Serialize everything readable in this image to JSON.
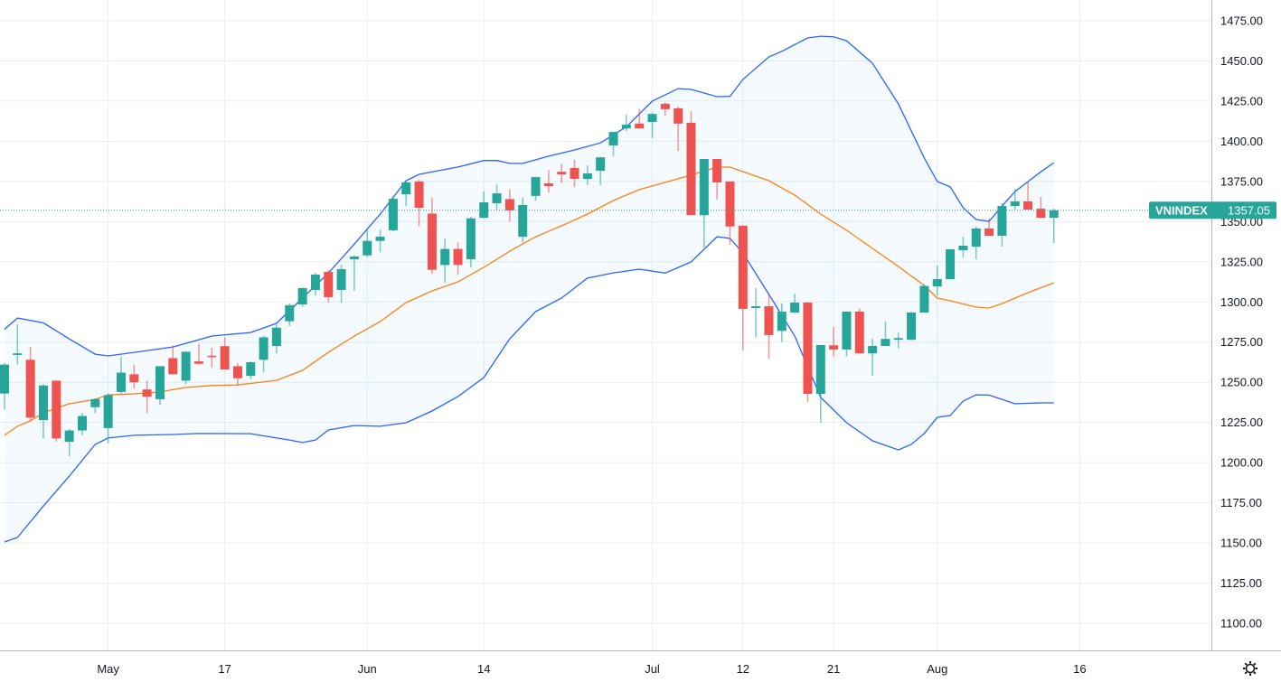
{
  "chart_data": {
    "type": "candlestick",
    "symbol": "VNINDEX",
    "last_price_label": "1357.05",
    "colors": {
      "up": "#26a69a",
      "down": "#ef5350",
      "bands": "#2962ff",
      "band_fill": "#2196f3",
      "basis": "#ff7f0e"
    },
    "ylim": [
      1075,
      1487
    ],
    "y_ticks": [
      "1100.00",
      "1125.00",
      "1150.00",
      "1175.00",
      "1200.00",
      "1225.00",
      "1250.00",
      "1275.00",
      "1300.00",
      "1325.00",
      "1350.00",
      "1375.00",
      "1400.00",
      "1425.00",
      "1450.00",
      "1475.00"
    ],
    "x_ticks": [
      {
        "label": "May",
        "date": "May 4"
      },
      {
        "label": "17",
        "date": "May 17"
      },
      {
        "label": "Jun",
        "date": "Jun 1"
      },
      {
        "label": "14",
        "date": "Jun 14"
      },
      {
        "label": "Jul",
        "date": "Jul 1"
      },
      {
        "label": "12",
        "date": "Jul 12"
      },
      {
        "label": "21",
        "date": "Jul 21"
      },
      {
        "label": "Aug",
        "date": "Aug 2"
      },
      {
        "label": "16",
        "date": "Aug 16"
      }
    ],
    "grid": true,
    "candles_columns": [
      "date",
      "open",
      "high",
      "low",
      "close"
    ],
    "candles": [
      [
        "Apr 19",
        1243,
        1262,
        1233,
        1261
      ],
      [
        "Apr 20",
        1267,
        1286,
        1261,
        1268
      ],
      [
        "Apr 22",
        1264,
        1272,
        1226,
        1228
      ],
      [
        "Apr 23",
        1226.5,
        1249,
        1215,
        1248
      ],
      [
        "Apr 26",
        1251,
        1251,
        1213,
        1215
      ],
      [
        "Apr 27",
        1213,
        1221,
        1204,
        1220
      ],
      [
        "Apr 28",
        1220,
        1231,
        1217,
        1229
      ],
      [
        "Apr 29",
        1234.5,
        1240,
        1231,
        1239.5
      ],
      [
        "May 4",
        1221.5,
        1243,
        1212,
        1242
      ],
      [
        "May 5",
        1244,
        1266,
        1243,
        1256
      ],
      [
        "May 6",
        1255,
        1261,
        1246,
        1250
      ],
      [
        "May 7",
        1245.5,
        1251,
        1231,
        1241
      ],
      [
        "May 10",
        1239.5,
        1260,
        1236,
        1260
      ],
      [
        "May 11",
        1265,
        1273,
        1255,
        1255
      ],
      [
        "May 12",
        1251,
        1269,
        1249,
        1269
      ],
      [
        "May 13",
        1263,
        1274,
        1261,
        1261.5
      ],
      [
        "May 14",
        1266.5,
        1271.5,
        1259,
        1266
      ],
      [
        "May 17",
        1272.5,
        1278,
        1258,
        1258
      ],
      [
        "May 18",
        1260,
        1262,
        1248,
        1252.5
      ],
      [
        "May 19",
        1254,
        1263,
        1252,
        1262.5
      ],
      [
        "May 20",
        1264,
        1279,
        1256,
        1278
      ],
      [
        "May 21",
        1272.6,
        1286,
        1268,
        1284
      ],
      [
        "May 24",
        1288,
        1299,
        1285,
        1298
      ],
      [
        "May 25",
        1298.5,
        1309,
        1297,
        1308.6
      ],
      [
        "May 26",
        1307.5,
        1318,
        1304,
        1317
      ],
      [
        "May 27",
        1318.7,
        1320,
        1299.6,
        1303
      ],
      [
        "May 28",
        1307.5,
        1323,
        1299.6,
        1320.4
      ],
      [
        "May 31",
        1326.6,
        1329,
        1307,
        1328.3
      ],
      [
        "Jun 1",
        1329,
        1346,
        1328,
        1338
      ],
      [
        "Jun 2",
        1338,
        1345,
        1331,
        1340.6
      ],
      [
        "Jun 3",
        1344.6,
        1366,
        1344,
        1364.2
      ],
      [
        "Jun 4",
        1367,
        1375,
        1359.7,
        1374.4
      ],
      [
        "Jun 7",
        1375,
        1376,
        1347,
        1358.6
      ],
      [
        "Jun 8",
        1355,
        1365,
        1317.6,
        1320
      ],
      [
        "Jun 9",
        1323,
        1339.5,
        1312,
        1333
      ],
      [
        "Jun 10",
        1333,
        1337,
        1317,
        1323
      ],
      [
        "Jun 11",
        1326.6,
        1353,
        1321.5,
        1352
      ],
      [
        "Jun 14",
        1352.4,
        1369,
        1352,
        1362
      ],
      [
        "Jun 15",
        1361.4,
        1373,
        1357,
        1367.6
      ],
      [
        "Jun 16",
        1364,
        1370,
        1350,
        1357
      ],
      [
        "Jun 17",
        1340.6,
        1365,
        1337,
        1360.3
      ],
      [
        "Jun 18",
        1366,
        1378,
        1363,
        1377.7
      ],
      [
        "Jun 21",
        1373.8,
        1382,
        1368,
        1372
      ],
      [
        "Jun 22",
        1381,
        1386,
        1374,
        1379.4
      ],
      [
        "Jun 23",
        1383.4,
        1388.4,
        1371.6,
        1376.6
      ],
      [
        "Jun 24",
        1376.6,
        1385,
        1372.7,
        1380
      ],
      [
        "Jun 25",
        1381.7,
        1390,
        1372.7,
        1390
      ],
      [
        "Jun 28",
        1397.4,
        1406,
        1390.7,
        1405.8
      ],
      [
        "Jun 29",
        1408,
        1416.5,
        1406.4,
        1410.3
      ],
      [
        "Jun 30",
        1411,
        1420,
        1408,
        1408
      ],
      [
        "Jul 1",
        1412,
        1418,
        1402,
        1417
      ],
      [
        "Jul 2",
        1423.3,
        1424.4,
        1416,
        1420
      ],
      [
        "Jul 5",
        1420.5,
        1421.6,
        1394,
        1411
      ],
      [
        "Jul 6",
        1411.5,
        1419,
        1354,
        1354
      ],
      [
        "Jul 7",
        1354,
        1389,
        1334,
        1389
      ],
      [
        "Jul 8",
        1389,
        1389,
        1363.7,
        1374.4
      ],
      [
        "Jul 9",
        1375,
        1375,
        1335.6,
        1347
      ],
      [
        "Jul 12",
        1347.4,
        1348,
        1270,
        1295.7
      ],
      [
        "Jul 13",
        1296.2,
        1308.6,
        1278,
        1297.3
      ],
      [
        "Jul 14",
        1297.3,
        1305,
        1264.7,
        1279.4
      ],
      [
        "Jul 15",
        1282,
        1299,
        1275,
        1294
      ],
      [
        "Jul 16",
        1293.4,
        1305,
        1293,
        1299.6
      ],
      [
        "Jul 19",
        1299.6,
        1300,
        1237.7,
        1242.8
      ],
      [
        "Jul 20",
        1242.8,
        1273.2,
        1224.8,
        1273.2
      ],
      [
        "Jul 21",
        1273,
        1284.4,
        1266,
        1270.4
      ],
      [
        "Jul 22",
        1270.4,
        1294,
        1266,
        1294
      ],
      [
        "Jul 23",
        1294,
        1296,
        1268,
        1268
      ],
      [
        "Jul 26",
        1268,
        1277,
        1254,
        1272.6
      ],
      [
        "Jul 27",
        1272.6,
        1288,
        1272.6,
        1277
      ],
      [
        "Jul 28",
        1276.5,
        1281,
        1271,
        1277.5
      ],
      [
        "Jul 29",
        1276.5,
        1294,
        1276,
        1293.4
      ],
      [
        "Jul 30",
        1293.4,
        1311,
        1293.4,
        1310
      ],
      [
        "Aug 2",
        1309.7,
        1322.6,
        1304,
        1314.2
      ],
      [
        "Aug 3",
        1314.2,
        1333,
        1314,
        1332.8
      ],
      [
        "Aug 4",
        1332.2,
        1340.6,
        1327.7,
        1335
      ],
      [
        "Aug 5",
        1334.4,
        1347,
        1326.6,
        1345.7
      ],
      [
        "Aug 6",
        1345.7,
        1352,
        1341,
        1341.2
      ],
      [
        "Aug 9",
        1341.2,
        1361.4,
        1334.4,
        1359.7
      ],
      [
        "Aug 10",
        1359.7,
        1370.4,
        1357.5,
        1362.6
      ],
      [
        "Aug 11",
        1362.6,
        1374.4,
        1357.5,
        1357.5
      ],
      [
        "Aug 12",
        1358,
        1365.4,
        1352,
        1352.4
      ],
      [
        "Aug 13",
        1352.4,
        1358,
        1336.7,
        1357.05
      ]
    ],
    "bollinger_upper": [
      [
        "Apr 19",
        1283
      ],
      [
        "Apr 20",
        1290
      ],
      [
        "Apr 23",
        1287
      ],
      [
        "Apr 27",
        1277
      ],
      [
        "Apr 29",
        1267.5
      ],
      [
        "May 4",
        1266.4
      ],
      [
        "May 6",
        1268.6
      ],
      [
        "May 11",
        1272
      ],
      [
        "May 13",
        1276.5
      ],
      [
        "May 14",
        1278.8
      ],
      [
        "May 19",
        1281
      ],
      [
        "May 21",
        1286.7
      ],
      [
        "May 25",
        1302.4
      ],
      [
        "May 27",
        1318
      ],
      [
        "May 31",
        1336
      ],
      [
        "Jun 2",
        1354.7
      ],
      [
        "Jun 4",
        1375.5
      ],
      [
        "Jun 7",
        1379.4
      ],
      [
        "Jun 10",
        1384
      ],
      [
        "Jun 14",
        1388
      ],
      [
        "Jun 15",
        1388
      ],
      [
        "Jun 16",
        1386.2
      ],
      [
        "Jun 17",
        1386.2
      ],
      [
        "Jun 21",
        1390.7
      ],
      [
        "Jun 23",
        1394.6
      ],
      [
        "Jun 25",
        1399
      ],
      [
        "Jun 29",
        1409
      ],
      [
        "Jul 1",
        1425
      ],
      [
        "Jul 5",
        1432.8
      ],
      [
        "Jul 6",
        1432.3
      ],
      [
        "Jul 8",
        1427.8
      ],
      [
        "Jul 9",
        1428
      ],
      [
        "Jul 12",
        1438.5
      ],
      [
        "Jul 14",
        1452.5
      ],
      [
        "Jul 15",
        1456
      ],
      [
        "Jul 19",
        1464.3
      ],
      [
        "Jul 20",
        1465.4
      ],
      [
        "Jul 21",
        1465
      ],
      [
        "Jul 22",
        1462.6
      ],
      [
        "Jul 26",
        1448.6
      ],
      [
        "Jul 28",
        1423.3
      ],
      [
        "Jul 30",
        1389.6
      ],
      [
        "Aug 2",
        1375
      ],
      [
        "Aug 3",
        1371.6
      ],
      [
        "Aug 4",
        1358.6
      ],
      [
        "Aug 5",
        1351.3
      ],
      [
        "Aug 6",
        1350.2
      ],
      [
        "Aug 9",
        1359.7
      ],
      [
        "Aug 10",
        1368.7
      ],
      [
        "Aug 12",
        1381
      ],
      [
        "Aug 13",
        1386.7
      ]
    ],
    "bollinger_basis": [
      [
        "Apr 19",
        1217
      ],
      [
        "Apr 20",
        1222.6
      ],
      [
        "Apr 22",
        1226
      ],
      [
        "Apr 23",
        1231
      ],
      [
        "Apr 27",
        1236.6
      ],
      [
        "Apr 29",
        1239.4
      ],
      [
        "May 4",
        1242.2
      ],
      [
        "May 6",
        1242.8
      ],
      [
        "May 10",
        1244
      ],
      [
        "May 12",
        1246.8
      ],
      [
        "May 14",
        1248
      ],
      [
        "May 18",
        1248.4
      ],
      [
        "May 21",
        1251.2
      ],
      [
        "May 25",
        1257.4
      ],
      [
        "May 27",
        1268.6
      ],
      [
        "May 31",
        1278.8
      ],
      [
        "Jun 2",
        1287.8
      ],
      [
        "Jun 4",
        1299.6
      ],
      [
        "Jun 8",
        1306.9
      ],
      [
        "Jun 10",
        1312.5
      ],
      [
        "Jun 14",
        1321.5
      ],
      [
        "Jun 16",
        1331.6
      ],
      [
        "Jun 18",
        1340.6
      ],
      [
        "Jun 22",
        1347.4
      ],
      [
        "Jun 24",
        1354.7
      ],
      [
        "Jun 28",
        1363.1
      ],
      [
        "Jun 30",
        1369.9
      ],
      [
        "Jul 2",
        1374.4
      ],
      [
        "Jul 6",
        1378.9
      ],
      [
        "Jul 8",
        1383.9
      ],
      [
        "Jul 9",
        1383.9
      ],
      [
        "Jul 12",
        1381.1
      ],
      [
        "Jul 14",
        1375.5
      ],
      [
        "Jul 16",
        1366.5
      ],
      [
        "Jul 20",
        1354.7
      ],
      [
        "Jul 22",
        1344.6
      ],
      [
        "Jul 26",
        1333.3
      ],
      [
        "Jul 28",
        1322.1
      ],
      [
        "Jul 30",
        1310.3
      ],
      [
        "Aug 2",
        1302.4
      ],
      [
        "Aug 3",
        1300.7
      ],
      [
        "Aug 5",
        1296.8
      ],
      [
        "Aug 6",
        1296.2
      ],
      [
        "Aug 9",
        1299
      ],
      [
        "Aug 11",
        1305.8
      ],
      [
        "Aug 13",
        1311.9
      ]
    ],
    "bollinger_lower": [
      [
        "Apr 19",
        1150.6
      ],
      [
        "Apr 20",
        1153.4
      ],
      [
        "Apr 23",
        1173
      ],
      [
        "Apr 27",
        1191.6
      ],
      [
        "Apr 29",
        1211.3
      ],
      [
        "May 4",
        1215.3
      ],
      [
        "May 6",
        1217
      ],
      [
        "May 11",
        1217.5
      ],
      [
        "May 13",
        1218.1
      ],
      [
        "May 19",
        1218
      ],
      [
        "May 21",
        1215.3
      ],
      [
        "May 24",
        1214.1
      ],
      [
        "May 25",
        1212.5
      ],
      [
        "May 26",
        1214
      ],
      [
        "May 27",
        1220.3
      ],
      [
        "May 31",
        1223.1
      ],
      [
        "Jun 2",
        1222.6
      ],
      [
        "Jun 4",
        1224.8
      ],
      [
        "Jun 8",
        1232.1
      ],
      [
        "Jun 10",
        1241.1
      ],
      [
        "Jun 14",
        1252.9
      ],
      [
        "Jun 16",
        1277.1
      ],
      [
        "Jun 18",
        1294
      ],
      [
        "Jun 22",
        1302.4
      ],
      [
        "Jun 24",
        1314.8
      ],
      [
        "Jun 28",
        1318.1
      ],
      [
        "Jun 30",
        1320.4
      ],
      [
        "Jul 2",
        1318
      ],
      [
        "Jul 6",
        1324.9
      ],
      [
        "Jul 8",
        1340.6
      ],
      [
        "Jul 9",
        1339.5
      ],
      [
        "Jul 12",
        1330.5
      ],
      [
        "Jul 14",
        1304.7
      ],
      [
        "Jul 16",
        1278.8
      ],
      [
        "Jul 20",
        1240.6
      ],
      [
        "Jul 22",
        1224.8
      ],
      [
        "Jul 26",
        1213.6
      ],
      [
        "Jul 28",
        1207.9
      ],
      [
        "Jul 29",
        1211.3
      ],
      [
        "Jul 30",
        1218.1
      ],
      [
        "Aug 2",
        1228.2
      ],
      [
        "Aug 3",
        1229.3
      ],
      [
        "Aug 4",
        1238.3
      ],
      [
        "Aug 5",
        1242.2
      ],
      [
        "Aug 6",
        1242
      ],
      [
        "Aug 10",
        1236.6
      ],
      [
        "Aug 12",
        1237.2
      ],
      [
        "Aug 13",
        1237.2
      ]
    ]
  },
  "icons": {
    "settings": "gear-icon"
  }
}
